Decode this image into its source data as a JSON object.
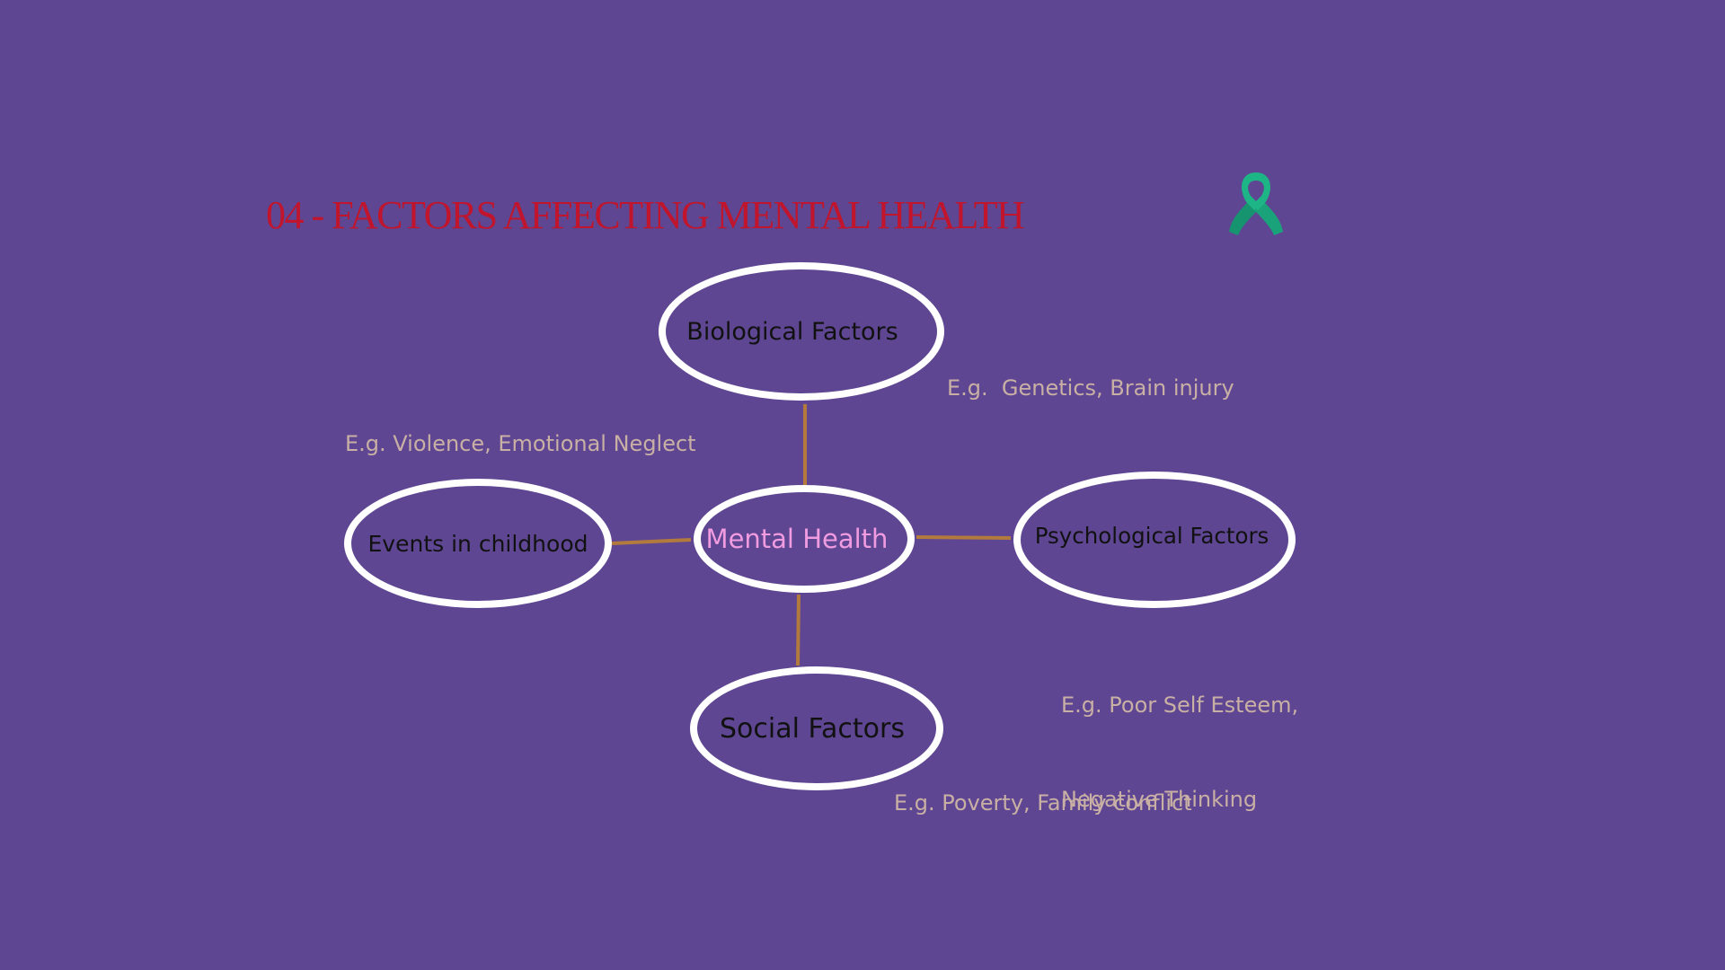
{
  "title": "04 - FACTORS AFFECTING MENTAL HEALTH",
  "icon": {
    "name": "awareness-ribbon-icon",
    "color": "#1aa37a"
  },
  "colors": {
    "background": "#5e4692",
    "title": "#c0152c",
    "node_border": "#ffffff",
    "connector": "#b37a3e",
    "center_text": "#f19be0",
    "example_text": "#c9b0a4"
  },
  "center": {
    "label": "Mental Health"
  },
  "nodes": {
    "biological": {
      "label": "Biological Factors",
      "example": "E.g.  Genetics, Brain injury"
    },
    "childhood": {
      "label": "Events in childhood",
      "example": "E.g. Violence, Emotional Neglect"
    },
    "psychological": {
      "label": "Psychological Factors",
      "example_lines": [
        "E.g. Poor Self Esteem,",
        "Negative Thinking"
      ]
    },
    "social": {
      "label": "Social Factors",
      "example": "E.g. Poverty, Family conflict"
    }
  }
}
